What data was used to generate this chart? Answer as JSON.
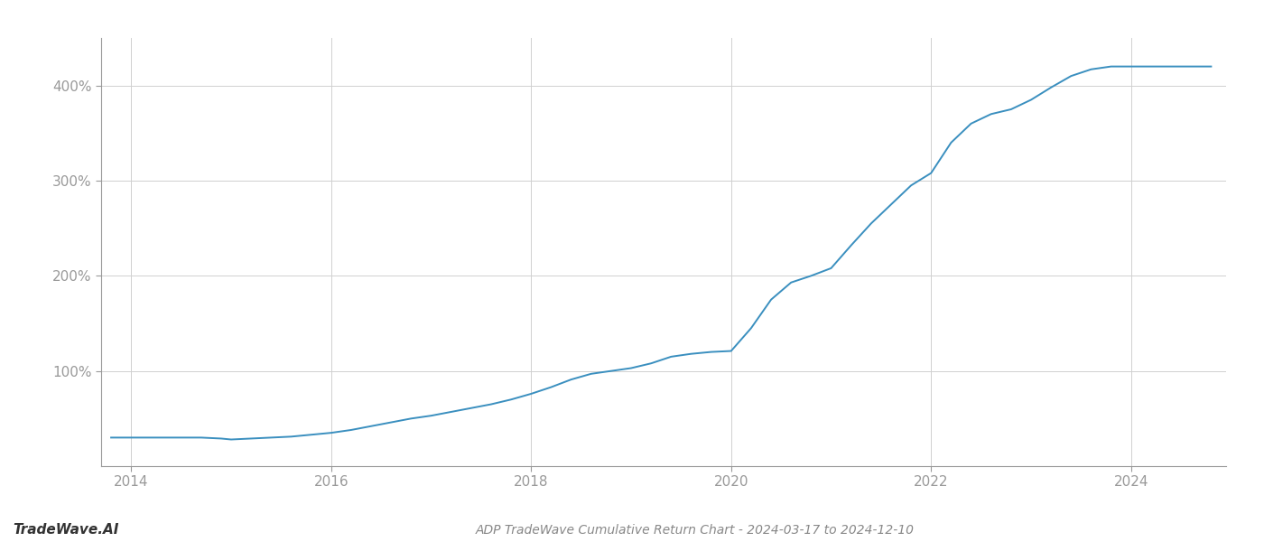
{
  "title": "ADP TradeWave Cumulative Return Chart - 2024-03-17 to 2024-12-10",
  "watermark": "TradeWave.AI",
  "line_color": "#3a8fbf",
  "background_color": "#ffffff",
  "grid_color": "#d0d0d0",
  "line_width": 1.4,
  "x_data": [
    2013.8,
    2014.0,
    2014.15,
    2014.3,
    2014.5,
    2014.7,
    2014.9,
    2015.0,
    2015.2,
    2015.4,
    2015.6,
    2015.8,
    2016.0,
    2016.2,
    2016.4,
    2016.6,
    2016.8,
    2017.0,
    2017.2,
    2017.4,
    2017.6,
    2017.8,
    2018.0,
    2018.2,
    2018.4,
    2018.6,
    2018.8,
    2019.0,
    2019.2,
    2019.4,
    2019.6,
    2019.8,
    2020.0,
    2020.2,
    2020.4,
    2020.6,
    2020.8,
    2021.0,
    2021.2,
    2021.4,
    2021.6,
    2021.8,
    2022.0,
    2022.2,
    2022.4,
    2022.6,
    2022.8,
    2023.0,
    2023.2,
    2023.4,
    2023.6,
    2023.8,
    2024.0,
    2024.2,
    2024.4,
    2024.6,
    2024.8
  ],
  "y_data": [
    30,
    30,
    30,
    30,
    30,
    30,
    29,
    28,
    29,
    30,
    31,
    33,
    35,
    38,
    42,
    46,
    50,
    53,
    57,
    61,
    65,
    70,
    76,
    83,
    91,
    97,
    100,
    103,
    108,
    115,
    118,
    120,
    121,
    145,
    175,
    193,
    200,
    208,
    232,
    255,
    275,
    295,
    308,
    340,
    360,
    370,
    375,
    385,
    398,
    410,
    417,
    420,
    420,
    420,
    420,
    420,
    420
  ],
  "yticks": [
    100,
    200,
    300,
    400
  ],
  "ytick_labels": [
    "100%",
    "200%",
    "300%",
    "400%"
  ],
  "xticks": [
    2014,
    2016,
    2018,
    2020,
    2022,
    2024
  ],
  "xlim": [
    2013.7,
    2024.95
  ],
  "ylim": [
    0,
    450
  ],
  "title_fontsize": 10,
  "watermark_fontsize": 11,
  "tick_fontsize": 11,
  "spine_color": "#999999",
  "tick_label_color": "#999999"
}
